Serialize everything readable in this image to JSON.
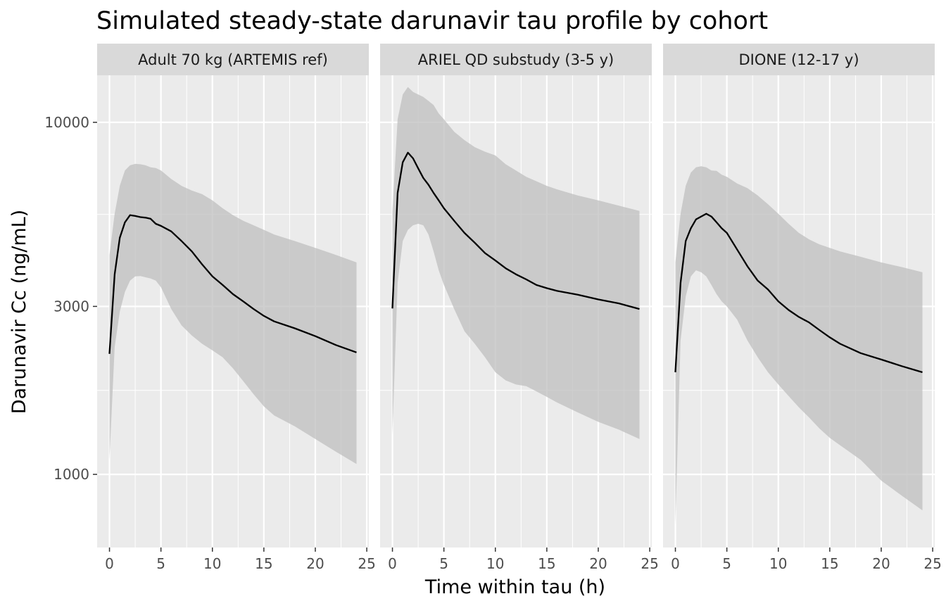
{
  "chart_data": {
    "type": "line",
    "title": "Simulated steady-state darunavir tau profile by cohort",
    "xlabel": "Time within tau (h)",
    "ylabel": "Darunavir Cc (ng/mL)",
    "y_scale": "log10",
    "xlim": [
      -1.2,
      25.2
    ],
    "ylim": [
      620,
      13600
    ],
    "x_ticks": [
      0,
      5,
      10,
      15,
      20,
      25
    ],
    "y_ticks": [
      1000,
      3000,
      10000
    ],
    "grid": true,
    "band": "ribbon (grey) around median line",
    "panels": [
      {
        "strip": "Adult 70 kg (ARTEMIS ref)",
        "x": [
          0,
          0.5,
          1,
          1.5,
          2,
          2.5,
          3,
          3.5,
          4,
          4.5,
          5,
          6,
          7,
          8,
          9,
          10,
          11,
          12,
          13,
          14,
          15,
          16,
          18,
          20,
          22,
          24
        ],
        "median": [
          2200,
          3700,
          4700,
          5200,
          5450,
          5420,
          5380,
          5360,
          5320,
          5150,
          5080,
          4900,
          4600,
          4300,
          3950,
          3650,
          3450,
          3250,
          3100,
          2950,
          2820,
          2720,
          2600,
          2470,
          2330,
          2220
        ],
        "lower": [
          1100,
          2300,
          2900,
          3300,
          3550,
          3650,
          3660,
          3630,
          3600,
          3550,
          3400,
          2950,
          2650,
          2480,
          2350,
          2250,
          2150,
          2000,
          1840,
          1690,
          1560,
          1470,
          1370,
          1260,
          1160,
          1070
        ],
        "upper": [
          4200,
          5500,
          6600,
          7300,
          7550,
          7620,
          7600,
          7550,
          7450,
          7420,
          7300,
          6900,
          6600,
          6400,
          6250,
          6000,
          5700,
          5450,
          5250,
          5100,
          4950,
          4800,
          4600,
          4400,
          4200,
          4000
        ]
      },
      {
        "strip": "ARIEL QD substudy (3-5 y)",
        "x": [
          0,
          0.5,
          1,
          1.5,
          2,
          2.5,
          3,
          3.5,
          4,
          4.5,
          5,
          6,
          7,
          8,
          9,
          10,
          11,
          12,
          13,
          14,
          15,
          16,
          18,
          20,
          22,
          24
        ],
        "median": [
          2960,
          6300,
          7700,
          8200,
          7900,
          7400,
          6950,
          6650,
          6300,
          6000,
          5700,
          5250,
          4850,
          4550,
          4250,
          4050,
          3850,
          3700,
          3580,
          3450,
          3380,
          3320,
          3240,
          3140,
          3060,
          2950
        ],
        "lower": [
          1300,
          3500,
          4600,
          4950,
          5100,
          5150,
          5100,
          4800,
          4300,
          3800,
          3450,
          2950,
          2550,
          2350,
          2150,
          1950,
          1850,
          1800,
          1780,
          1720,
          1660,
          1600,
          1500,
          1410,
          1340,
          1260
        ],
        "upper": [
          5600,
          10200,
          12000,
          12600,
          12200,
          12000,
          11800,
          11500,
          11200,
          10600,
          10200,
          9400,
          8900,
          8500,
          8250,
          8050,
          7600,
          7300,
          7000,
          6800,
          6600,
          6450,
          6200,
          6000,
          5800,
          5600
        ]
      },
      {
        "strip": "DIONE (12-17 y)",
        "x": [
          0,
          0.5,
          1,
          1.5,
          2,
          2.5,
          3,
          3.5,
          4,
          4.5,
          5,
          6,
          7,
          8,
          9,
          10,
          11,
          12,
          13,
          14,
          15,
          16,
          18,
          20,
          22,
          24
        ],
        "median": [
          1950,
          3500,
          4600,
          5000,
          5300,
          5400,
          5500,
          5400,
          5200,
          5000,
          4850,
          4350,
          3900,
          3550,
          3350,
          3100,
          2930,
          2800,
          2700,
          2570,
          2450,
          2350,
          2210,
          2120,
          2030,
          1950
        ],
        "lower": [
          720,
          2400,
          3200,
          3650,
          3800,
          3750,
          3650,
          3450,
          3250,
          3100,
          3000,
          2750,
          2400,
          2150,
          1950,
          1800,
          1670,
          1550,
          1450,
          1350,
          1270,
          1210,
          1100,
          960,
          870,
          790
        ],
        "upper": [
          4000,
          5500,
          6600,
          7200,
          7450,
          7500,
          7450,
          7300,
          7280,
          7100,
          7000,
          6700,
          6500,
          6200,
          5850,
          5500,
          5150,
          4850,
          4650,
          4500,
          4400,
          4300,
          4150,
          4000,
          3880,
          3750
        ]
      }
    ]
  }
}
